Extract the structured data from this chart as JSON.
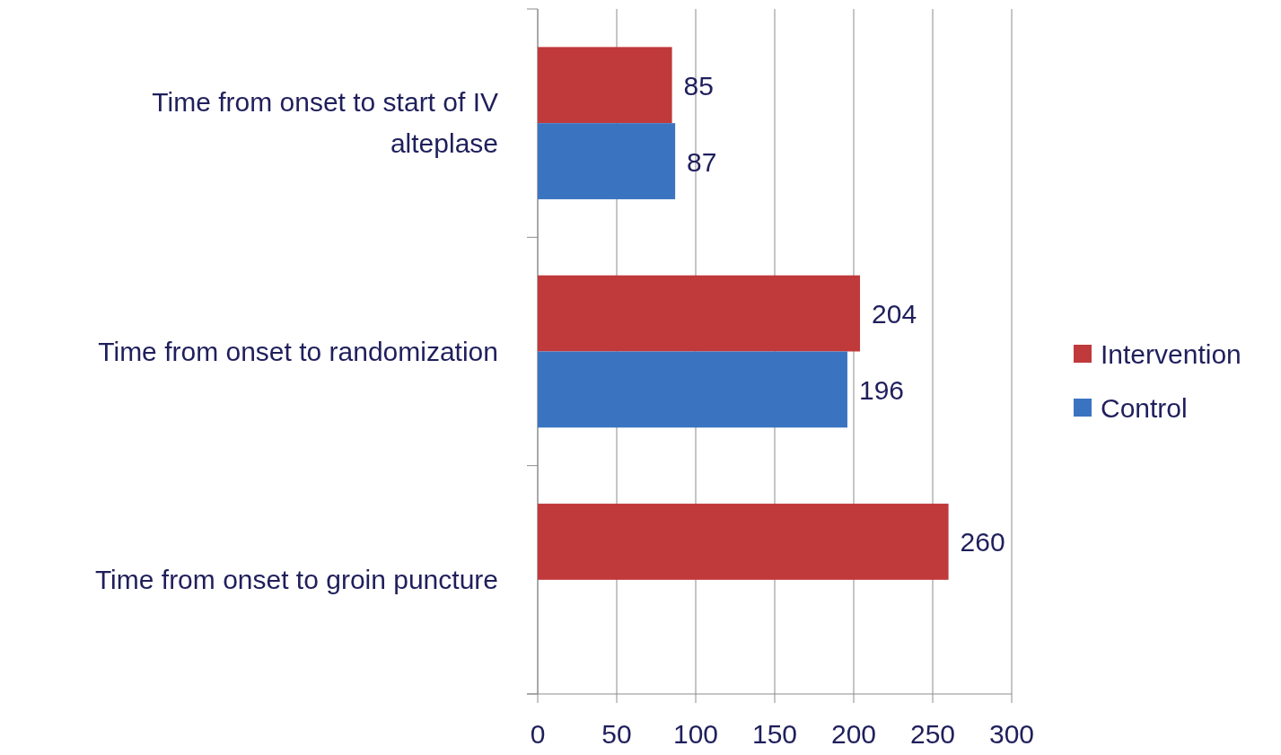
{
  "chart_data": {
    "type": "bar",
    "orientation": "horizontal",
    "categories": [
      "Time from onset to start of IV alteplase",
      "Time from onset to randomization",
      "Time from onset to groin puncture"
    ],
    "series": [
      {
        "name": "Intervention",
        "color": "#c0393b",
        "values": [
          85,
          204,
          260
        ]
      },
      {
        "name": "Control",
        "color": "#3a74c0",
        "values": [
          87,
          196,
          null
        ]
      }
    ],
    "xlim": [
      0,
      300
    ],
    "xticks": [
      0,
      50,
      100,
      150,
      200,
      250,
      300
    ],
    "grid": "x",
    "legend": "right",
    "data_labels": true
  }
}
